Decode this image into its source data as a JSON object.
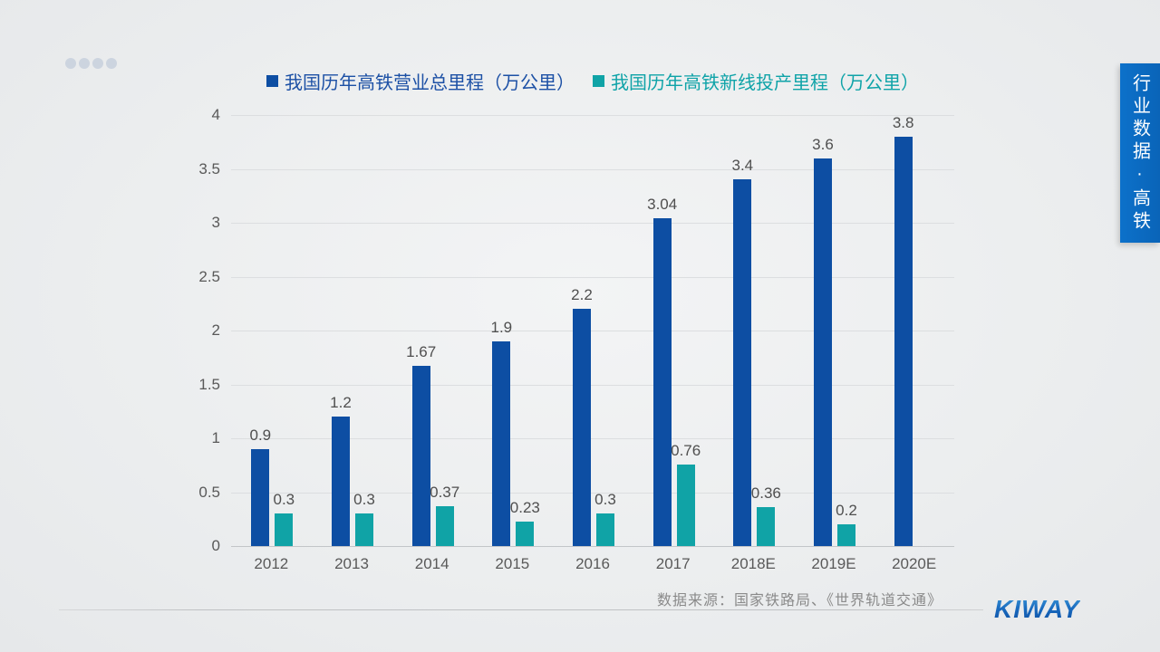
{
  "chart_data": {
    "type": "bar",
    "title": "",
    "xlabel": "",
    "ylabel": "",
    "categories": [
      "2012",
      "2013",
      "2014",
      "2015",
      "2016",
      "2017",
      "2018E",
      "2019E",
      "2020E"
    ],
    "series": [
      {
        "name": "我国历年高铁营业总里程（万公里）",
        "color": "#0D4EA3",
        "legend_text_color": "#1C50A5",
        "values": [
          0.9,
          1.2,
          1.67,
          1.9,
          2.2,
          3.04,
          3.4,
          3.6,
          3.8
        ]
      },
      {
        "name": "我国历年高铁新线投产里程（万公里）",
        "color": "#10A3A6",
        "legend_text_color": "#0FA3A8",
        "values": [
          0.3,
          0.3,
          0.37,
          0.23,
          0.3,
          0.76,
          0.36,
          0.2,
          null
        ]
      }
    ],
    "ylim": [
      0,
      4
    ],
    "ytick_step": 0.5,
    "grid": true,
    "legend_position": "top"
  },
  "footer": {
    "source": "数据来源：国家铁路局、《世界轨道交通》",
    "logo": "KIWAY"
  },
  "side_banner": {
    "text": "行业数据·高铁"
  }
}
